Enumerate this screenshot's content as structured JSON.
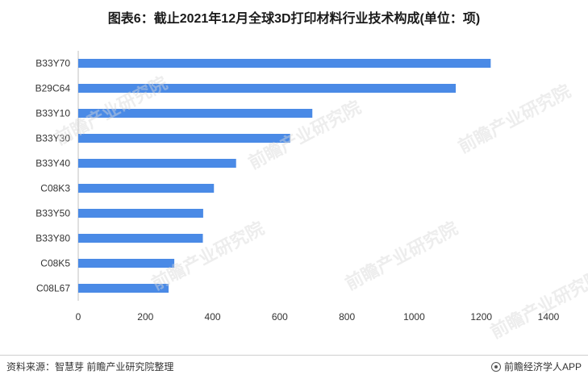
{
  "header": {
    "title": "图表6：截止2021年12月全球3D打印材料行业技术构成(单位：项)"
  },
  "footer": {
    "source": "资料来源：智慧芽 前瞻产业研究院整理",
    "brand": "前瞻经济学人APP"
  },
  "watermark": {
    "text": "前瞻产业研究院"
  },
  "colors": {
    "bar": "#4a8ae6",
    "axis": "#bfbfbf"
  },
  "chart_data": {
    "type": "bar",
    "orientation": "horizontal",
    "categories": [
      "B33Y70",
      "B29C64",
      "B33Y10",
      "B33Y30",
      "B33Y40",
      "C08K3",
      "B33Y50",
      "B33Y80",
      "C08K5",
      "C08L67"
    ],
    "values": [
      1228,
      1124,
      697,
      631,
      470,
      404,
      372,
      371,
      286,
      269
    ],
    "xlim": [
      0,
      1400
    ],
    "xticks": [
      0,
      200,
      400,
      600,
      800,
      1000,
      1200,
      1400
    ],
    "grid": false,
    "legend": "none"
  }
}
